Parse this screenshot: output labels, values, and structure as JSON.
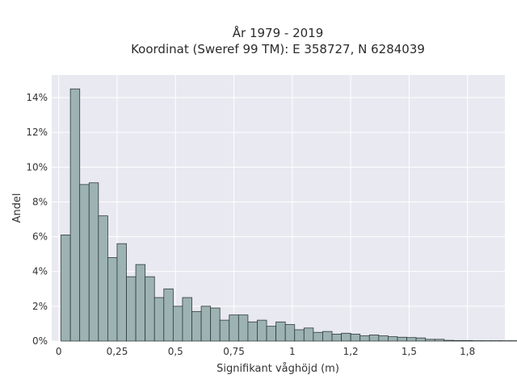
{
  "chart_data": {
    "type": "bar",
    "title_line1": "År 1979 - 2019",
    "title_line2": "Koordinat (Sweref 99 TM): E 358727, N 6284039",
    "xlabel": "Signifikant våghöjd (m)",
    "ylabel": "Andel",
    "xlim": [
      -0.03,
      1.91
    ],
    "ylim": [
      0,
      15.3
    ],
    "grid": true,
    "x_ticks": [
      {
        "value": 0,
        "label": "0"
      },
      {
        "value": 0.25,
        "label": "0,25"
      },
      {
        "value": 0.5,
        "label": "0,5"
      },
      {
        "value": 0.75,
        "label": "0,75"
      },
      {
        "value": 1.0,
        "label": "1"
      },
      {
        "value": 1.25,
        "label": "1,2"
      },
      {
        "value": 1.5,
        "label": "1,5"
      },
      {
        "value": 1.75,
        "label": "1,8"
      }
    ],
    "y_ticks": [
      {
        "value": 0,
        "label": "0%"
      },
      {
        "value": 2,
        "label": "2%"
      },
      {
        "value": 4,
        "label": "4%"
      },
      {
        "value": 6,
        "label": "6%"
      },
      {
        "value": 8,
        "label": "8%"
      },
      {
        "value": 10,
        "label": "10%"
      },
      {
        "value": 12,
        "label": "12%"
      },
      {
        "value": 14,
        "label": "14%"
      }
    ],
    "bin_start": 0.01,
    "bin_width": 0.04,
    "values": [
      6.1,
      14.5,
      9.0,
      9.1,
      7.2,
      4.8,
      5.6,
      3.7,
      4.4,
      3.7,
      2.5,
      3.0,
      2.0,
      2.5,
      1.7,
      2.0,
      1.9,
      1.2,
      1.5,
      1.5,
      1.1,
      1.2,
      0.85,
      1.1,
      0.95,
      0.65,
      0.75,
      0.5,
      0.55,
      0.4,
      0.45,
      0.4,
      0.3,
      0.35,
      0.3,
      0.25,
      0.22,
      0.2,
      0.18,
      0.1,
      0.1,
      0.04,
      0.03,
      0.03,
      0.02,
      0.02,
      0.02,
      0.02,
      0.02,
      0.02
    ],
    "bar_color": "#9db3b3",
    "bar_edge_color": "#2f3a3a",
    "plot_bg": "#e9e9f1",
    "grid_color": "#ffffff"
  }
}
